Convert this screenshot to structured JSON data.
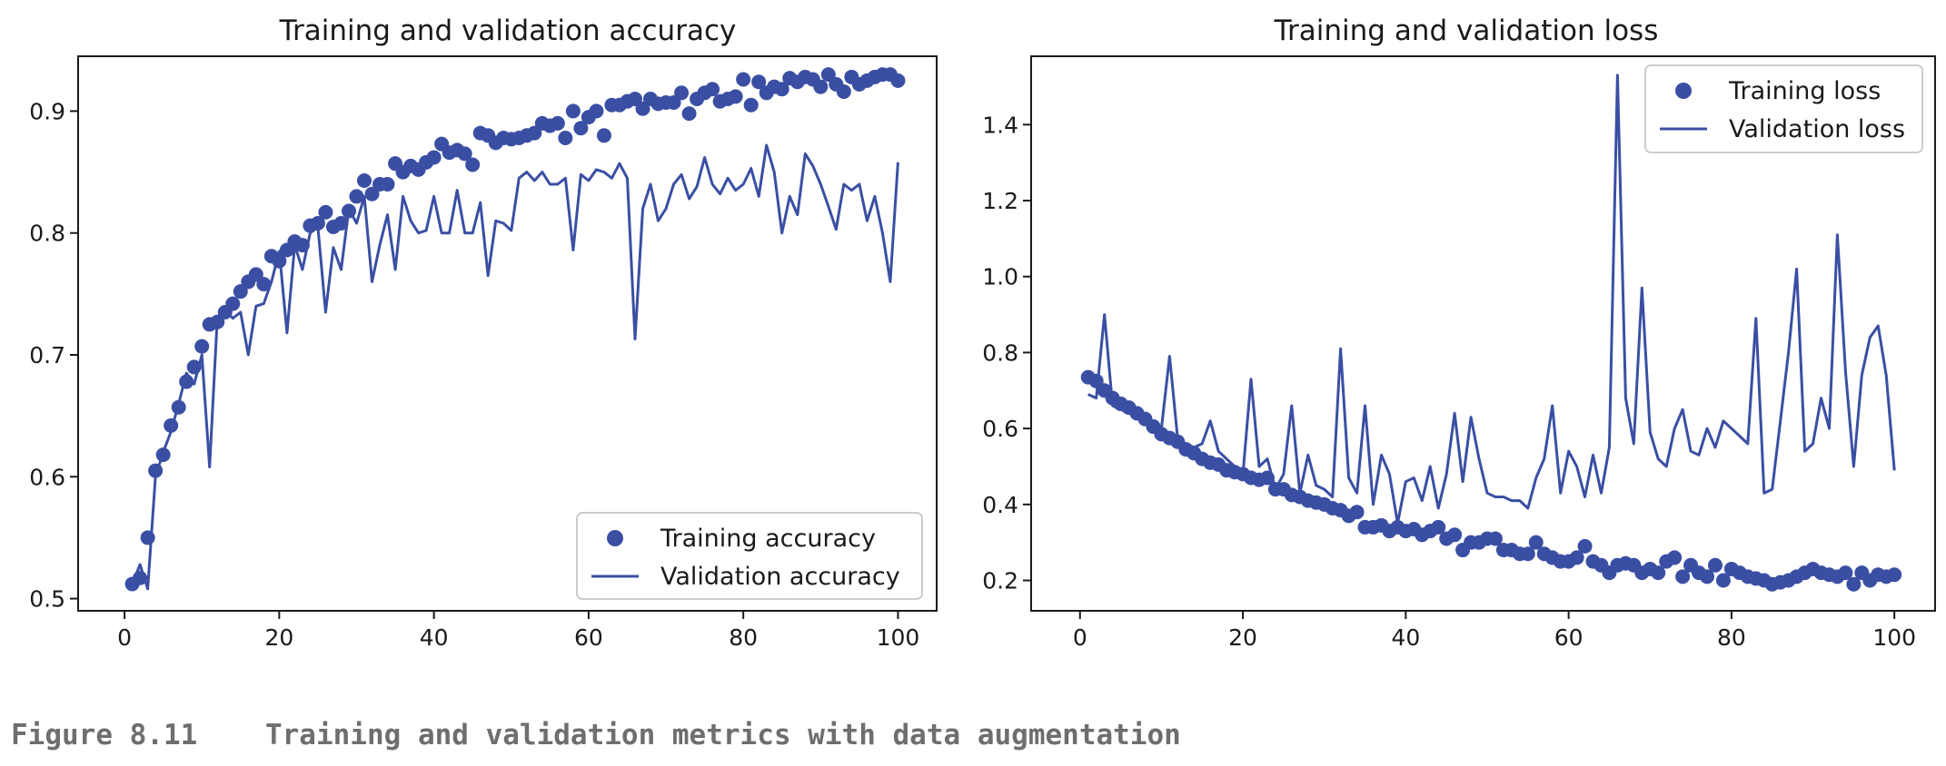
{
  "caption": {
    "label": "Figure 8.11",
    "text": "Training and validation metrics with data augmentation"
  },
  "colors": {
    "series": "#3a4fa3",
    "axis": "#1a1a1a",
    "caption": "#6e6e6e"
  },
  "chart_data": [
    {
      "type": "line",
      "title": "Training and validation accuracy",
      "xlabel": "",
      "ylabel": "",
      "xlim": [
        -6,
        105
      ],
      "ylim": [
        0.49,
        0.945
      ],
      "xticks": [
        0,
        20,
        40,
        60,
        80,
        100
      ],
      "yticks": [
        0.5,
        0.6,
        0.7,
        0.8,
        0.9
      ],
      "grid": false,
      "legend_position": "lower-right",
      "series": [
        {
          "name": "Training accuracy",
          "style": "markers",
          "x": [
            1,
            2,
            3,
            4,
            5,
            6,
            7,
            8,
            9,
            10,
            11,
            12,
            13,
            14,
            15,
            16,
            17,
            18,
            19,
            20,
            21,
            22,
            23,
            24,
            25,
            26,
            27,
            28,
            29,
            30,
            31,
            32,
            33,
            34,
            35,
            36,
            37,
            38,
            39,
            40,
            41,
            42,
            43,
            44,
            45,
            46,
            47,
            48,
            49,
            50,
            51,
            52,
            53,
            54,
            55,
            56,
            57,
            58,
            59,
            60,
            61,
            62,
            63,
            64,
            65,
            66,
            67,
            68,
            69,
            70,
            71,
            72,
            73,
            74,
            75,
            76,
            77,
            78,
            79,
            80,
            81,
            82,
            83,
            84,
            85,
            86,
            87,
            88,
            89,
            90,
            91,
            92,
            93,
            94,
            95,
            96,
            97,
            98,
            99,
            100
          ],
          "y": [
            0.512,
            0.517,
            0.55,
            0.605,
            0.618,
            0.642,
            0.657,
            0.678,
            0.69,
            0.707,
            0.725,
            0.727,
            0.735,
            0.742,
            0.752,
            0.76,
            0.766,
            0.758,
            0.781,
            0.777,
            0.786,
            0.793,
            0.79,
            0.806,
            0.808,
            0.817,
            0.805,
            0.808,
            0.818,
            0.83,
            0.843,
            0.832,
            0.84,
            0.84,
            0.857,
            0.85,
            0.855,
            0.852,
            0.858,
            0.862,
            0.873,
            0.866,
            0.868,
            0.865,
            0.856,
            0.882,
            0.88,
            0.874,
            0.878,
            0.877,
            0.878,
            0.88,
            0.882,
            0.89,
            0.888,
            0.89,
            0.878,
            0.9,
            0.886,
            0.895,
            0.9,
            0.88,
            0.905,
            0.905,
            0.908,
            0.91,
            0.902,
            0.91,
            0.906,
            0.907,
            0.907,
            0.915,
            0.898,
            0.91,
            0.915,
            0.918,
            0.908,
            0.91,
            0.912,
            0.926,
            0.905,
            0.924,
            0.915,
            0.92,
            0.918,
            0.927,
            0.924,
            0.928,
            0.926,
            0.92,
            0.93,
            0.922,
            0.916,
            0.928,
            0.922,
            0.925,
            0.928,
            0.93,
            0.93,
            0.925
          ]
        },
        {
          "name": "Validation accuracy",
          "style": "line",
          "x": [
            1,
            2,
            3,
            4,
            5,
            6,
            7,
            8,
            9,
            10,
            11,
            12,
            13,
            14,
            15,
            16,
            17,
            18,
            19,
            20,
            21,
            22,
            23,
            24,
            25,
            26,
            27,
            28,
            29,
            30,
            31,
            32,
            33,
            34,
            35,
            36,
            37,
            38,
            39,
            40,
            41,
            42,
            43,
            44,
            45,
            46,
            47,
            48,
            49,
            50,
            51,
            52,
            53,
            54,
            55,
            56,
            57,
            58,
            59,
            60,
            61,
            62,
            63,
            64,
            65,
            66,
            67,
            68,
            69,
            70,
            71,
            72,
            73,
            74,
            75,
            76,
            77,
            78,
            79,
            80,
            81,
            82,
            83,
            84,
            85,
            86,
            87,
            88,
            89,
            90,
            91,
            92,
            93,
            94,
            95,
            96,
            97,
            98,
            99,
            100
          ],
          "y": [
            0.512,
            0.528,
            0.508,
            0.6,
            0.62,
            0.637,
            0.66,
            0.685,
            0.676,
            0.7,
            0.608,
            0.73,
            0.737,
            0.73,
            0.735,
            0.7,
            0.74,
            0.742,
            0.76,
            0.785,
            0.718,
            0.79,
            0.77,
            0.8,
            0.805,
            0.735,
            0.788,
            0.77,
            0.82,
            0.808,
            0.83,
            0.76,
            0.79,
            0.815,
            0.77,
            0.83,
            0.81,
            0.8,
            0.802,
            0.83,
            0.8,
            0.8,
            0.835,
            0.8,
            0.8,
            0.825,
            0.765,
            0.81,
            0.808,
            0.802,
            0.845,
            0.85,
            0.843,
            0.85,
            0.84,
            0.84,
            0.845,
            0.786,
            0.848,
            0.843,
            0.852,
            0.85,
            0.845,
            0.857,
            0.845,
            0.713,
            0.82,
            0.84,
            0.81,
            0.82,
            0.84,
            0.848,
            0.828,
            0.838,
            0.862,
            0.84,
            0.832,
            0.845,
            0.835,
            0.84,
            0.853,
            0.83,
            0.872,
            0.85,
            0.8,
            0.83,
            0.815,
            0.865,
            0.855,
            0.84,
            0.822,
            0.803,
            0.84,
            0.835,
            0.84,
            0.81,
            0.83,
            0.8,
            0.76,
            0.858
          ]
        }
      ]
    },
    {
      "type": "line",
      "title": "Training and validation loss",
      "xlabel": "",
      "ylabel": "",
      "xlim": [
        -6,
        105
      ],
      "ylim": [
        0.12,
        1.58
      ],
      "xticks": [
        0,
        20,
        40,
        60,
        80,
        100
      ],
      "yticks": [
        0.2,
        0.4,
        0.6,
        0.8,
        1.0,
        1.2,
        1.4
      ],
      "grid": false,
      "legend_position": "upper-right",
      "series": [
        {
          "name": "Training loss",
          "style": "markers",
          "x": [
            1,
            2,
            3,
            4,
            5,
            6,
            7,
            8,
            9,
            10,
            11,
            12,
            13,
            14,
            15,
            16,
            17,
            18,
            19,
            20,
            21,
            22,
            23,
            24,
            25,
            26,
            27,
            28,
            29,
            30,
            31,
            32,
            33,
            34,
            35,
            36,
            37,
            38,
            39,
            40,
            41,
            42,
            43,
            44,
            45,
            46,
            47,
            48,
            49,
            50,
            51,
            52,
            53,
            54,
            55,
            56,
            57,
            58,
            59,
            60,
            61,
            62,
            63,
            64,
            65,
            66,
            67,
            68,
            69,
            70,
            71,
            72,
            73,
            74,
            75,
            76,
            77,
            78,
            79,
            80,
            81,
            82,
            83,
            84,
            85,
            86,
            87,
            88,
            89,
            90,
            91,
            92,
            93,
            94,
            95,
            96,
            97,
            98,
            99,
            100
          ],
          "y": [
            0.735,
            0.725,
            0.7,
            0.68,
            0.665,
            0.655,
            0.64,
            0.625,
            0.605,
            0.585,
            0.575,
            0.565,
            0.545,
            0.535,
            0.52,
            0.51,
            0.505,
            0.49,
            0.485,
            0.48,
            0.47,
            0.465,
            0.47,
            0.44,
            0.44,
            0.425,
            0.42,
            0.41,
            0.405,
            0.4,
            0.39,
            0.385,
            0.37,
            0.38,
            0.34,
            0.34,
            0.345,
            0.33,
            0.34,
            0.33,
            0.335,
            0.32,
            0.33,
            0.34,
            0.31,
            0.32,
            0.28,
            0.3,
            0.3,
            0.31,
            0.31,
            0.28,
            0.28,
            0.27,
            0.27,
            0.3,
            0.27,
            0.26,
            0.25,
            0.25,
            0.26,
            0.29,
            0.25,
            0.24,
            0.22,
            0.24,
            0.245,
            0.24,
            0.22,
            0.23,
            0.22,
            0.25,
            0.26,
            0.21,
            0.24,
            0.22,
            0.21,
            0.24,
            0.2,
            0.23,
            0.22,
            0.21,
            0.205,
            0.2,
            0.19,
            0.195,
            0.2,
            0.21,
            0.22,
            0.23,
            0.22,
            0.215,
            0.21,
            0.22,
            0.19,
            0.22,
            0.2,
            0.215,
            0.21,
            0.215
          ]
        },
        {
          "name": "Validation loss",
          "style": "line",
          "x": [
            1,
            2,
            3,
            4,
            5,
            6,
            7,
            8,
            9,
            10,
            11,
            12,
            13,
            14,
            15,
            16,
            17,
            18,
            19,
            20,
            21,
            22,
            23,
            24,
            25,
            26,
            27,
            28,
            29,
            30,
            31,
            32,
            33,
            34,
            35,
            36,
            37,
            38,
            39,
            40,
            41,
            42,
            43,
            44,
            45,
            46,
            47,
            48,
            49,
            50,
            51,
            52,
            53,
            54,
            55,
            56,
            57,
            58,
            59,
            60,
            61,
            62,
            63,
            64,
            65,
            66,
            67,
            68,
            69,
            70,
            71,
            72,
            73,
            74,
            75,
            76,
            77,
            78,
            79,
            80,
            81,
            82,
            83,
            84,
            85,
            86,
            87,
            88,
            89,
            90,
            91,
            92,
            93,
            94,
            95,
            96,
            97,
            98,
            99,
            100
          ],
          "y": [
            0.69,
            0.68,
            0.9,
            0.66,
            0.65,
            0.64,
            0.63,
            0.62,
            0.61,
            0.6,
            0.79,
            0.57,
            0.56,
            0.55,
            0.56,
            0.62,
            0.54,
            0.52,
            0.5,
            0.48,
            0.73,
            0.5,
            0.52,
            0.44,
            0.48,
            0.66,
            0.43,
            0.53,
            0.45,
            0.44,
            0.42,
            0.81,
            0.47,
            0.43,
            0.66,
            0.4,
            0.53,
            0.48,
            0.35,
            0.46,
            0.47,
            0.41,
            0.5,
            0.39,
            0.48,
            0.64,
            0.46,
            0.63,
            0.52,
            0.43,
            0.42,
            0.42,
            0.41,
            0.41,
            0.39,
            0.47,
            0.52,
            0.66,
            0.43,
            0.54,
            0.5,
            0.42,
            0.53,
            0.43,
            0.55,
            1.53,
            0.68,
            0.56,
            0.97,
            0.59,
            0.52,
            0.5,
            0.6,
            0.65,
            0.54,
            0.53,
            0.6,
            0.55,
            0.62,
            0.6,
            0.58,
            0.56,
            0.89,
            0.43,
            0.44,
            0.62,
            0.8,
            1.02,
            0.54,
            0.56,
            0.68,
            0.6,
            1.11,
            0.75,
            0.5,
            0.74,
            0.84,
            0.87,
            0.74,
            0.49
          ]
        }
      ]
    }
  ]
}
